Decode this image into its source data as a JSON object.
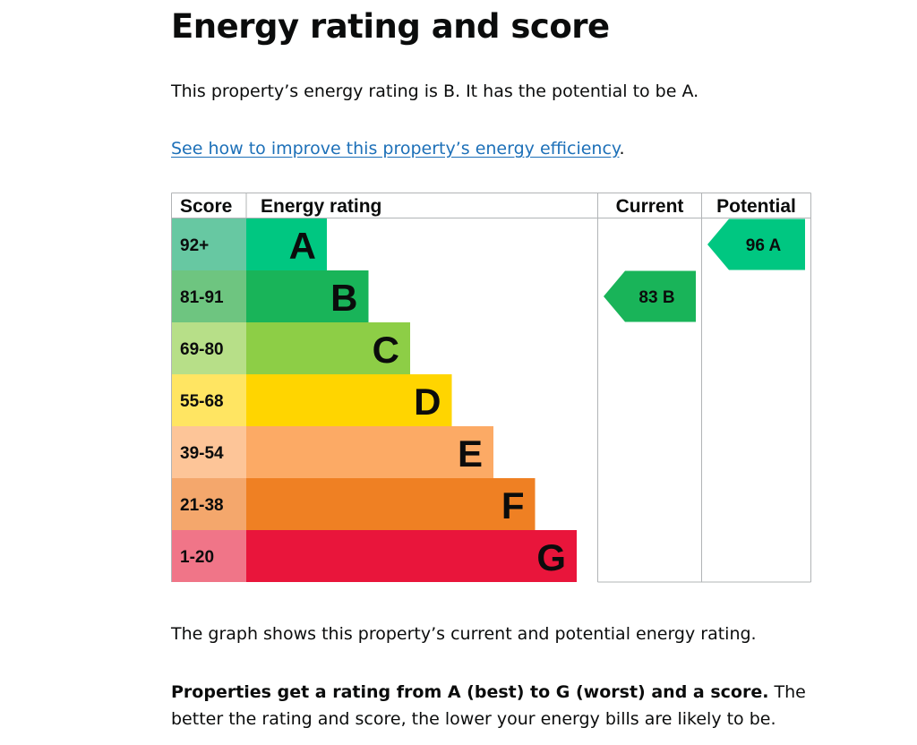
{
  "page": {
    "title": "Energy rating and score",
    "intro": "This property’s energy rating is B. It has the potential to be A.",
    "improve_link": "See how to improve this property’s energy efficiency",
    "improve_suffix": ".",
    "graph_note": "The graph shows this property’s current and potential energy rating.",
    "rating_note_bold": "Properties get a rating from A (best) to G (worst) and a score.",
    "rating_note_rest": " The better the rating and score, the lower your energy bills are likely to be."
  },
  "chart_data": {
    "type": "table",
    "headers": {
      "score": "Score",
      "rating": "Energy rating",
      "current": "Current",
      "potential": "Potential"
    },
    "bands": [
      {
        "score": "92+",
        "letter": "A",
        "color": "#00c781",
        "score_bg": "#67c8a2"
      },
      {
        "score": "81-91",
        "letter": "B",
        "color": "#19b459",
        "score_bg": "#6ec580"
      },
      {
        "score": "69-80",
        "letter": "C",
        "color": "#8dce46",
        "score_bg": "#b7df88"
      },
      {
        "score": "55-68",
        "letter": "D",
        "color": "#ffd500",
        "score_bg": "#ffe562"
      },
      {
        "score": "39-54",
        "letter": "E",
        "color": "#fcaa65",
        "score_bg": "#fdc598"
      },
      {
        "score": "21-38",
        "letter": "F",
        "color": "#ef8023",
        "score_bg": "#f4a76c"
      },
      {
        "score": "1-20",
        "letter": "G",
        "color": "#e9153b",
        "score_bg": "#f07588"
      }
    ],
    "current": {
      "score": 83,
      "letter": "B",
      "label": "83  B",
      "color": "#19b459"
    },
    "potential": {
      "score": 96,
      "letter": "A",
      "label": "96  A",
      "color": "#00c781"
    }
  }
}
